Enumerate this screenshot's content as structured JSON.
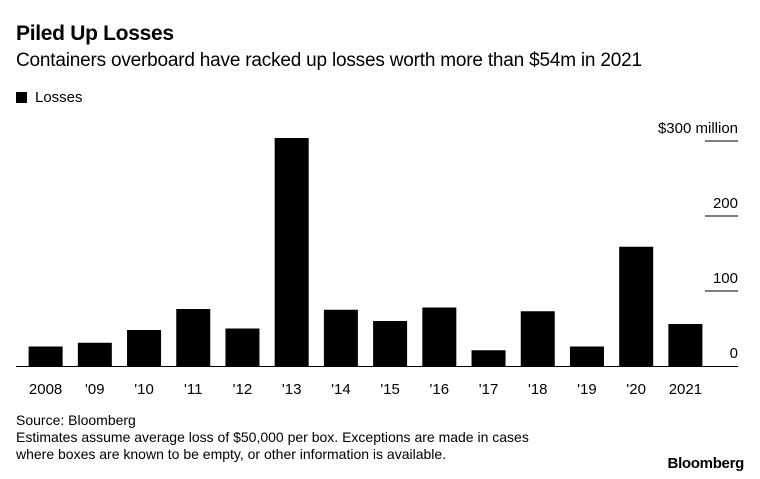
{
  "title": "Piled Up Losses",
  "subtitle": "Containers overboard have racked up losses worth more than $54m in 2021",
  "legend": {
    "label": "Losses"
  },
  "footer": {
    "source": "Source: Bloomberg",
    "note_line1": "Estimates assume average loss of $50,000 per box. Exceptions are made in cases",
    "note_line2": "where boxes are known to be empty, or other information is available."
  },
  "brand": "Bloomberg",
  "chart_data": {
    "type": "bar",
    "title": "Piled Up Losses",
    "xlabel": "",
    "ylabel": "",
    "categories": [
      "2008",
      "'09",
      "'10",
      "'11",
      "'12",
      "'13",
      "'14",
      "'15",
      "'16",
      "'17",
      "'18",
      "'19",
      "'20",
      "2021"
    ],
    "series": [
      {
        "name": "Losses",
        "values": [
          26,
          31,
          48,
          76,
          50,
          304,
          75,
          60,
          78,
          21,
          73,
          26,
          159,
          56
        ]
      }
    ],
    "ylim": [
      0,
      300
    ],
    "yticks": [
      0,
      100,
      200,
      300
    ],
    "ytick_labels": [
      "0",
      "100",
      "200",
      "$300 million"
    ],
    "bar_color": "#000000",
    "grid": false
  }
}
